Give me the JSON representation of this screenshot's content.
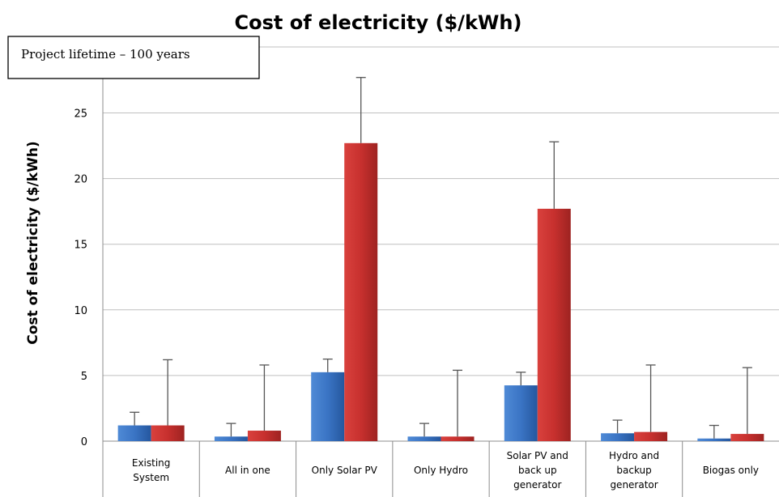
{
  "chart_data": {
    "type": "bar",
    "title": "Cost of electricity ($/kWh)",
    "ylabel": "Cost of electricity ($/kWh)",
    "xlabel": "",
    "annotation": "Project lifetime – 100 years",
    "ylim": [
      0,
      27.7
    ],
    "yticks": [
      0,
      5,
      10,
      15,
      20,
      25
    ],
    "grid": true,
    "categories": [
      "Existing System",
      "All in one",
      "Only Solar PV",
      "Only Hydro",
      "Solar PV and back up generator",
      "Hydro and backup generator",
      "Biogas only"
    ],
    "category_lines": [
      [
        "Existing",
        "System"
      ],
      [
        "All in one"
      ],
      [
        "Only Solar PV"
      ],
      [
        "Only Hydro"
      ],
      [
        "Solar PV and",
        "back up",
        "generator"
      ],
      [
        "Hydro and",
        "backup",
        "generator"
      ],
      [
        "Biogas only"
      ]
    ],
    "series": [
      {
        "values": [
          1.2,
          0.35,
          5.25,
          0.35,
          4.25,
          0.6,
          0.2
        ],
        "error_upper": [
          2.2,
          1.35,
          6.25,
          1.35,
          5.25,
          1.6,
          1.2
        ],
        "color": "#3a74c4"
      },
      {
        "values": [
          1.2,
          0.8,
          22.7,
          0.35,
          17.7,
          0.7,
          0.55
        ],
        "error_upper": [
          6.2,
          5.8,
          27.7,
          5.4,
          22.8,
          5.8,
          5.6
        ],
        "color": "#c7302e"
      }
    ]
  }
}
